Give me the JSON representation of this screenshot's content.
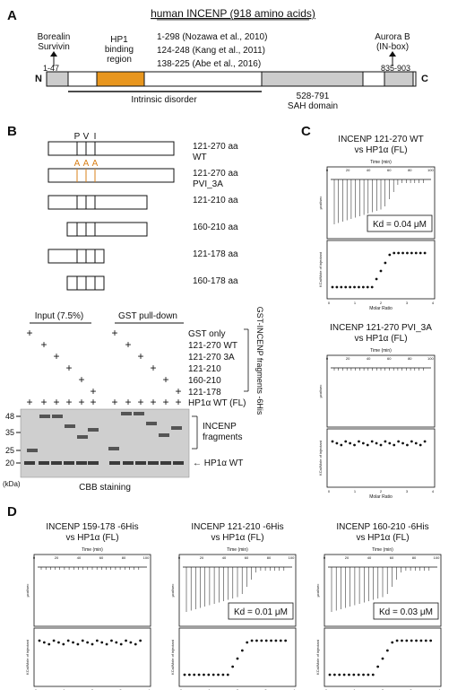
{
  "panel_a": {
    "letter": "A",
    "title": "human INCENP (918 amino acids)",
    "left_label_1": "Borealin",
    "left_label_2": "Survivin",
    "left_range": "1-47",
    "hp1_label_1": "HP1",
    "hp1_label_2": "binding",
    "hp1_label_3": "region",
    "ref_1": "1-298 (Nozawa et al., 2010)",
    "ref_2": "124-248 (Kang et al., 2011)",
    "ref_3": "138-225 (Abe et al., 2016)",
    "right_label_1": "Aurora B",
    "right_label_2": "(IN-box)",
    "right_range": "835-903",
    "n_term": "N",
    "c_term": "C",
    "disorder": "Intrinsic disorder",
    "sah_1": "528-791",
    "sah_2": "SAH domain",
    "colors": {
      "hp1": "#e8961e",
      "domain": "#cccccc"
    }
  },
  "panel_b": {
    "letter": "B",
    "pvi_p": "P",
    "pvi_v": "V",
    "pvi_i": "I",
    "aaa_1": "A",
    "aaa_2": "A",
    "aaa_3": "A",
    "constructs": [
      {
        "label1": "121-270 aa",
        "label2": "WT"
      },
      {
        "label1": "121-270 aa",
        "label2": "PVI_3A"
      },
      {
        "label1": "121-210 aa",
        "label2": ""
      },
      {
        "label1": "160-210 aa",
        "label2": ""
      },
      {
        "label1": "121-178 aa",
        "label2": ""
      },
      {
        "label1": "160-178 aa",
        "label2": ""
      }
    ],
    "input_header": "Input (7.5%)",
    "pulldown_header": "GST pull-down",
    "rows": [
      "GST only",
      "121-270 WT",
      "121-270 3A",
      "121-210",
      "160-210",
      "121-178"
    ],
    "gst_bracket": "GST-INCENP fragments -6His",
    "hp1_row": "HP1α WT (FL)",
    "plus": "+",
    "mw": [
      "48",
      "35",
      "25",
      "20"
    ],
    "kda": "(kDa)",
    "fragments_1": "INCENP",
    "fragments_2": "fragments",
    "hp1_wt_arrow": "← HP1α WT",
    "cbb": "CBB staining"
  },
  "panel_c": {
    "letter": "C",
    "plots": [
      {
        "title1": "INCENP 121-270 WT",
        "title2": "vs HP1α (FL)",
        "kd": "Kd = 0.04 μM"
      },
      {
        "title1": "INCENP 121-270 PVI_3A",
        "title2": "vs HP1α (FL)",
        "kd": ""
      }
    ]
  },
  "panel_d": {
    "letter": "D",
    "plots": [
      {
        "title1": "INCENP 159-178 -6His",
        "title2": "vs HP1α (FL)",
        "kd": ""
      },
      {
        "title1": "INCENP 121-210 -6His",
        "title2": "vs HP1α (FL)",
        "kd": "Kd = 0.01 μM"
      },
      {
        "title1": "INCENP 160-210 -6His",
        "title2": "vs HP1α (FL)",
        "kd": "Kd = 0.03 μM"
      }
    ]
  },
  "itc_axes": {
    "time_label": "Time (min)",
    "time_ticks": [
      "0",
      "20",
      "40",
      "60",
      "80",
      "100"
    ],
    "top_ylabel": "μcal/sec",
    "bottom_ylabel": "KCal/Mole of injectant",
    "molar_label": "Molar Ratio",
    "molar_ticks": [
      "0",
      "1",
      "2",
      "3",
      "4"
    ]
  }
}
